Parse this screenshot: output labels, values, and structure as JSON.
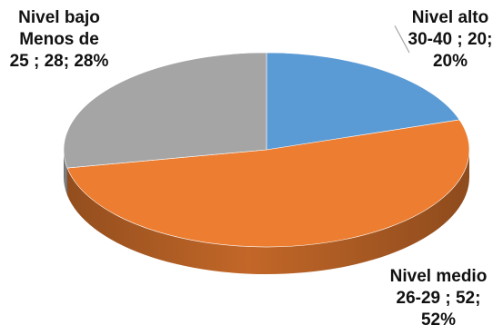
{
  "chart_data": {
    "type": "pie",
    "style": "3d",
    "slices": [
      {
        "category": "Nivel alto 30-40",
        "value": 20,
        "percent": 20,
        "color": "#5b9bd5",
        "label_lines": [
          "Nivel alto",
          "30-40 ; 20;",
          "20%"
        ]
      },
      {
        "category": "Nivel medio 26-29",
        "value": 52,
        "percent": 52,
        "color": "#ed7d31",
        "label_lines": [
          "Nivel medio",
          "26-29 ; 52;",
          "52%"
        ]
      },
      {
        "category": "Nivel bajo Menos de 25",
        "value": 28,
        "percent": 28,
        "color": "#a5a5a5",
        "label_lines": [
          "Nivel bajo",
          "Menos de",
          "25 ; 28; 28%"
        ]
      }
    ],
    "legend": "none"
  }
}
